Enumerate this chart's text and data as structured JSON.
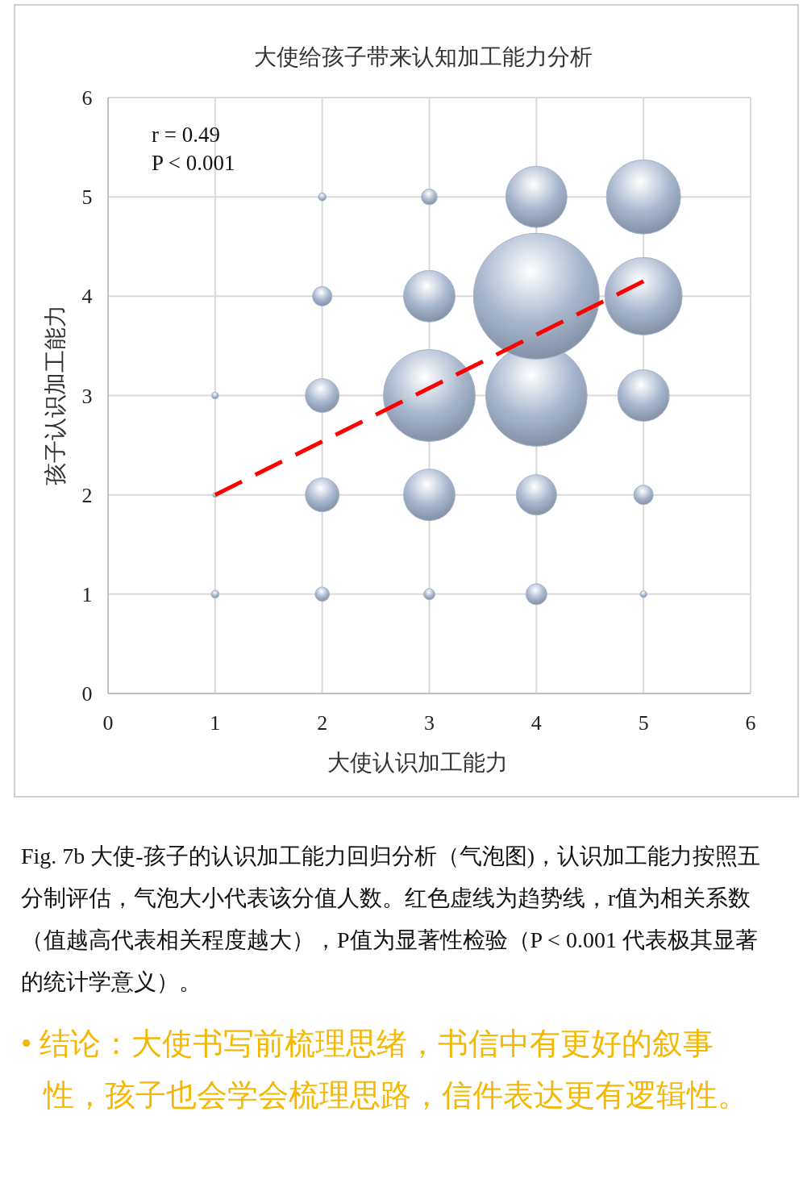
{
  "chart_data": {
    "type": "bubble",
    "title": "大使给孩子带来认知加工能力分析",
    "xlabel": "大使认识加工能力",
    "ylabel": "孩子认识加工能力",
    "xlim": [
      0,
      6
    ],
    "ylim": [
      0,
      6
    ],
    "xticks": [
      0,
      1,
      2,
      3,
      4,
      5,
      6
    ],
    "yticks": [
      0,
      1,
      2,
      3,
      4,
      5,
      6
    ],
    "grid": true,
    "series": [
      {
        "color": "#a7b6cc",
        "x": [
          1,
          2,
          3,
          4,
          5,
          1,
          2,
          3,
          4,
          5,
          1,
          2,
          3,
          4,
          5,
          2,
          3,
          4,
          5,
          2,
          3,
          4,
          5
        ],
        "values": [
          1,
          1,
          1,
          1,
          1,
          2,
          2,
          2,
          2,
          2,
          3,
          3,
          3,
          3,
          3,
          4,
          4,
          4,
          4,
          5,
          5,
          5,
          5
        ],
        "sizes": [
          0.004,
          0.013,
          0.008,
          0.028,
          0.003,
          0.0015,
          0.072,
          0.168,
          0.103,
          0.024,
          0.003,
          0.072,
          0.534,
          0.652,
          0.168,
          0.024,
          0.168,
          1,
          0.379,
          0.004,
          0.016,
          0.237,
          0.348
        ]
      },
      {
        "type": "line",
        "color": "#ff0000",
        "line_style": "dashed",
        "x": [
          1,
          5
        ],
        "values": [
          2,
          4.15
        ]
      }
    ],
    "annotations": [
      "r = 0.49",
      "P < 0.001",
      "Fig. 7b 大使-孩子的认识加工能力回归分析（气泡图)，认识加工能力按照五分制评估，气泡大小代表该分值人数。红色虚线为趋势线，r值为相关系数（值越高代表相关程度越大），P值为显著性检验（P < 0.001 代表极其显著的统计学意义）。",
      "• 结论：大使书写前梳理思绪，书信中有更好的叙事性，孩子也会学会梳理思路，信件表达更有逻辑性。"
    ]
  }
}
